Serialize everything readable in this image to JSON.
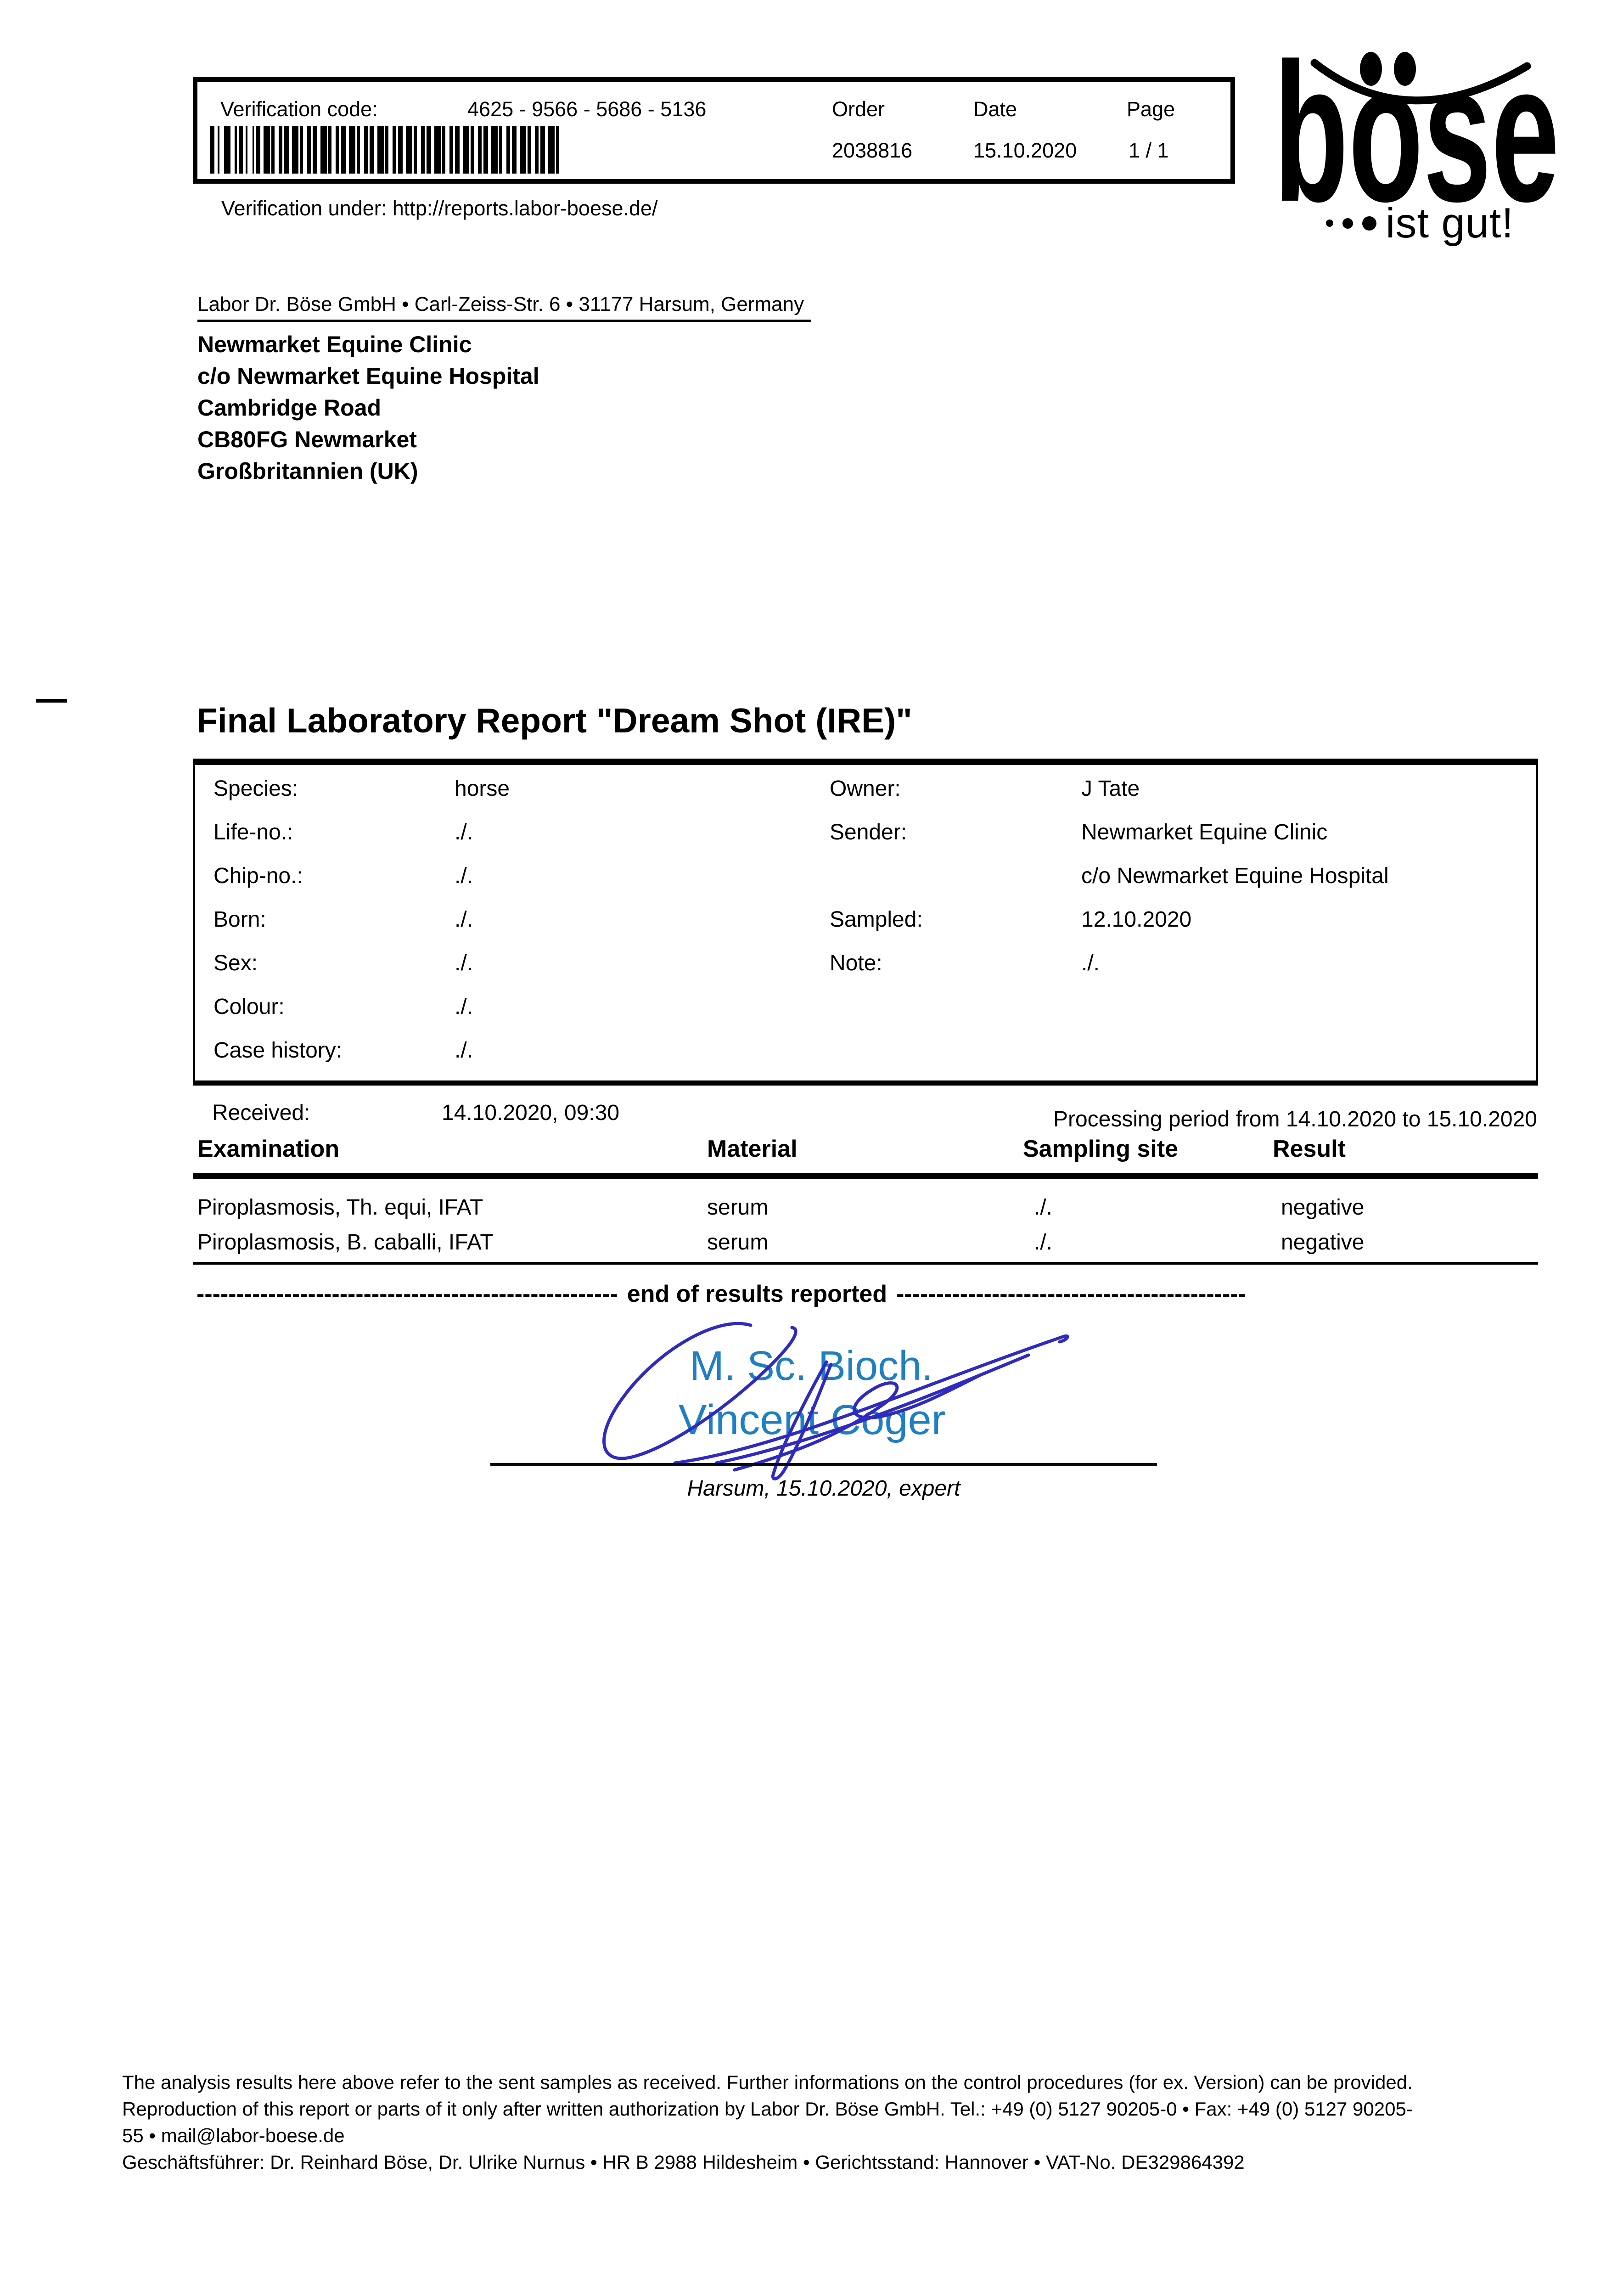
{
  "header": {
    "verification_label": "Verification code:",
    "verification_code": "4625 - 9566 - 5686 - 5136",
    "order_label": "Order",
    "order_value": "2038816",
    "date_label": "Date",
    "date_value": "15.10.2020",
    "page_label": "Page",
    "page_value": "1 / 1",
    "verification_under": "Verification under: http://reports.labor-boese.de/"
  },
  "logo": {
    "brand": "böse",
    "tagline": "ist gut!"
  },
  "icons": {
    "barcode": "code128-barcode",
    "logo_smile": "smile-arc-icon",
    "tagline_dots": "three-dots-icon"
  },
  "sender_line": "Labor Dr. Böse GmbH • Carl-Zeiss-Str. 6 • 31177 Harsum, Germany",
  "recipient": {
    "line1": "Newmarket Equine Clinic",
    "line2": "c/o Newmarket Equine Hospital",
    "line3": "Cambridge Road",
    "line4": "CB80FG Newmarket",
    "line5": "Großbritannien (UK)"
  },
  "report": {
    "title": "Final Laboratory Report \"Dream Shot (IRE)\"",
    "info": {
      "species_label": "Species:",
      "species": "horse",
      "life_no_label": "Life-no.:",
      "life_no": "./.",
      "chip_no_label": "Chip-no.:",
      "chip_no": "./.",
      "born_label": "Born:",
      "born": "./.",
      "sex_label": "Sex:",
      "sex": "./.",
      "colour_label": "Colour:",
      "colour": "./.",
      "case_history_label": "Case history:",
      "case_history": "./.",
      "owner_label": "Owner:",
      "owner": "J Tate",
      "sender_label": "Sender:",
      "sender_line1": "Newmarket Equine Clinic",
      "sender_line2": "c/o Newmarket Equine Hospital",
      "sampled_label": "Sampled:",
      "sampled": "12.10.2020",
      "note_label": "Note:",
      "note": "./."
    },
    "received_label": "Received:",
    "received_value": "14.10.2020, 09:30",
    "processing_period": "Processing period from 14.10.2020 to 15.10.2020",
    "results_table": {
      "headers": [
        "Examination",
        "Material",
        "Sampling site",
        "Result"
      ],
      "rows": [
        {
          "examination": "Piroplasmosis, Th. equi, IFAT",
          "material": "serum",
          "sampling_site": "./.",
          "result": "negative"
        },
        {
          "examination": "Piroplasmosis, B. caballi, IFAT",
          "material": "serum",
          "sampling_site": "./.",
          "result": "negative"
        }
      ]
    },
    "end_line": {
      "left_dashes": "-----------------------------------------------------",
      "text": "end of results reported",
      "right_dashes": "--------------------------------------------"
    }
  },
  "signature": {
    "line1": "M. Sc. Bioch.",
    "line2": "Vincent Coger",
    "caption": "Harsum, 15.10.2020, expert",
    "text_color": "#1e7fc2",
    "ink_color": "#2f2bc0"
  },
  "footer": {
    "line1": "The analysis results here above refer to the sent samples as received. Further informations on the control procedures (for ex. Version) can be provided.",
    "line2": "Reproduction of this report or parts of it only after written authorization by Labor Dr. Böse GmbH. Tel.: +49 (0) 5127 90205-0 • Fax: +49 (0) 5127 90205-",
    "line3": "55 • mail@labor-boese.de",
    "line4": "Geschäftsführer: Dr. Reinhard Böse, Dr. Ulrike Nurnus • HR B 2988 Hildesheim • Gerichtsstand: Hannover • VAT-No. DE329864392"
  }
}
